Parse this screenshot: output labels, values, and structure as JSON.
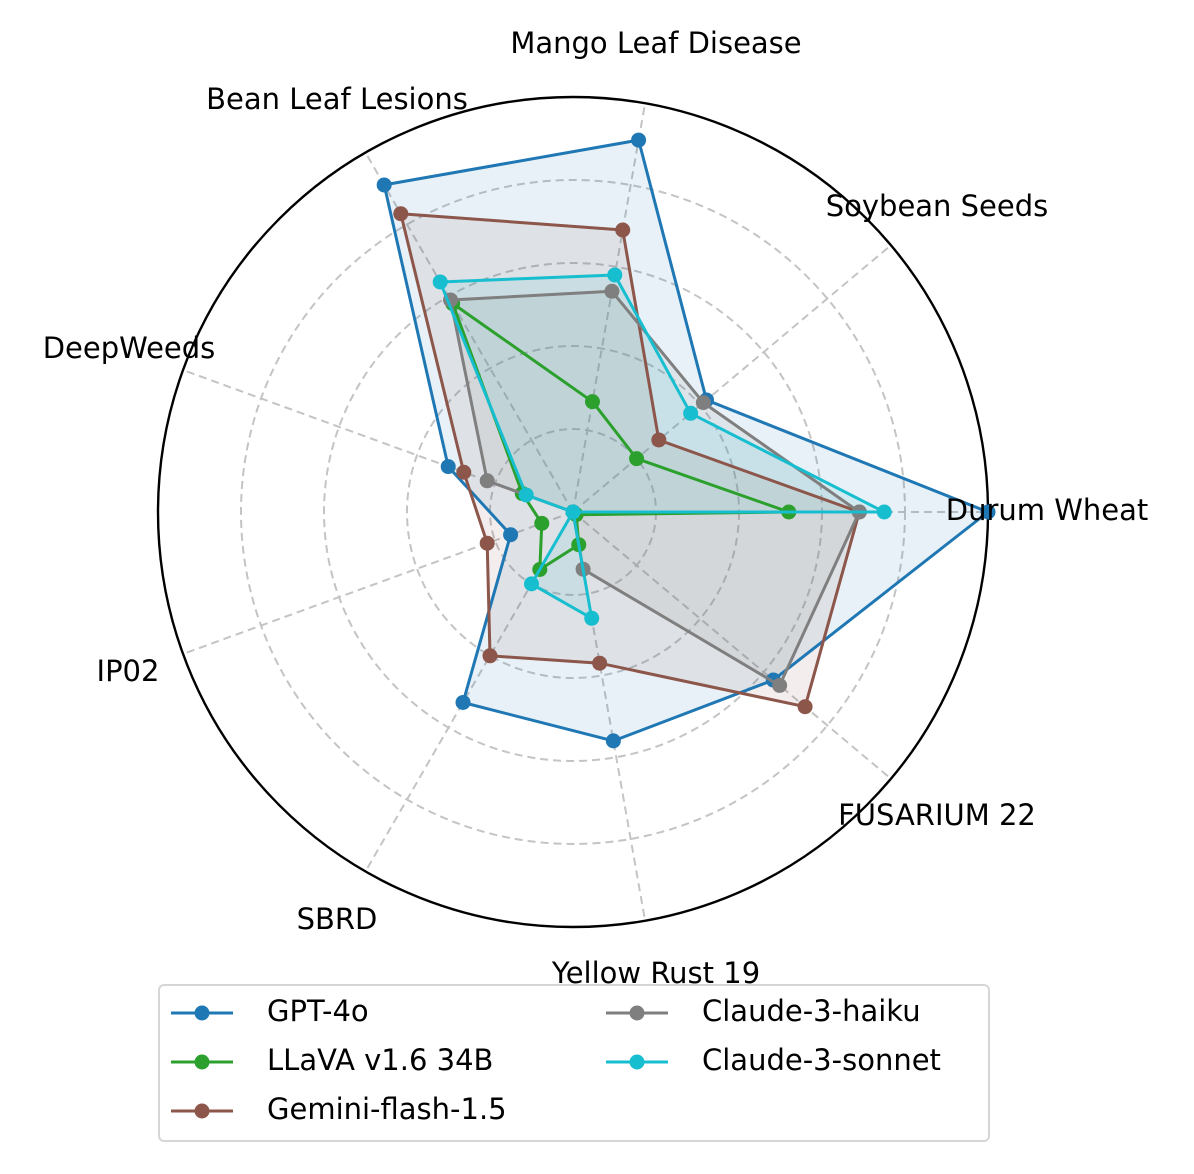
{
  "chart_data": {
    "type": "radar",
    "categories": [
      "Durum Wheat",
      "Soybean Seeds",
      "Mango Leaf Disease",
      "Bean Leaf Lesions",
      "DeepWeeds",
      "IP02",
      "SBRD",
      "Yellow Rust 19",
      "FUSARIUM 22"
    ],
    "rlim": [
      0,
      1
    ],
    "grid": true,
    "legend_position": "bottom",
    "series": [
      {
        "name": "GPT-4o",
        "color": "#1f77b4",
        "fill": true,
        "values": [
          1.0,
          0.42,
          0.91,
          0.91,
          0.32,
          0.16,
          0.53,
          0.56,
          0.63
        ]
      },
      {
        "name": "LLaVA v1.6 34B",
        "color": "#2ca02c",
        "fill": false,
        "values": [
          0.52,
          0.2,
          0.27,
          0.58,
          0.13,
          0.08,
          0.16,
          0.08,
          0.01
        ]
      },
      {
        "name": "Gemini-flash-1.5",
        "color": "#8c564b",
        "fill": true,
        "values": [
          0.69,
          0.27,
          0.69,
          0.83,
          0.28,
          0.22,
          0.4,
          0.37,
          0.73
        ]
      },
      {
        "name": "Claude-3-haiku",
        "color": "#7f7f7f",
        "fill": true,
        "values": [
          0.69,
          0.41,
          0.54,
          0.59,
          0.22,
          0.0,
          0.0,
          0.14,
          0.65
        ]
      },
      {
        "name": "Claude-3-sonnet",
        "color": "#17becf",
        "fill": true,
        "values": [
          0.75,
          0.37,
          0.58,
          0.64,
          0.12,
          0.0,
          0.2,
          0.26,
          0.0
        ]
      }
    ]
  }
}
